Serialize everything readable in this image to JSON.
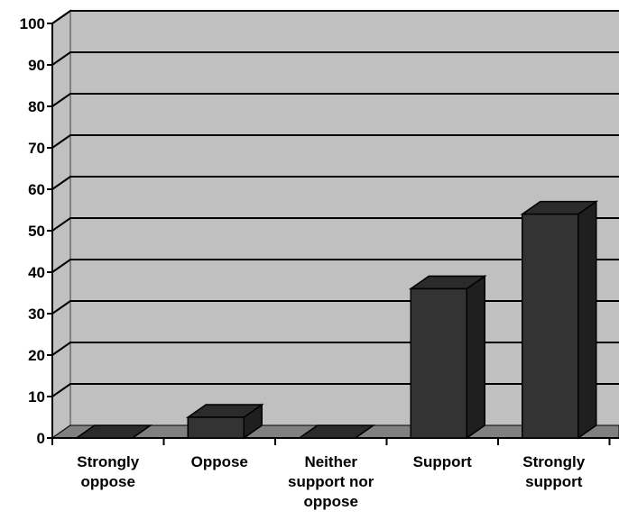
{
  "chart_data": {
    "type": "bar",
    "style": "3d",
    "categories": [
      [
        "Strongly",
        "oppose"
      ],
      [
        "Oppose"
      ],
      [
        "Neither",
        "support nor",
        "oppose"
      ],
      [
        "Support"
      ],
      [
        "Strongly",
        "support"
      ]
    ],
    "values": [
      0,
      5,
      0,
      36,
      54
    ],
    "ylim": [
      0,
      100
    ],
    "yticks": [
      "0",
      "10",
      "20",
      "30",
      "40",
      "50",
      "60",
      "70",
      "80",
      "90",
      "100"
    ],
    "grid": true,
    "legend": "none",
    "colors": {
      "background": "#c0c0c0",
      "bar_front": "#333333",
      "bar_top": "#2b2b2b",
      "bar_side": "#1f1f1f",
      "floor": "#808080",
      "gridline": "#000000"
    }
  }
}
